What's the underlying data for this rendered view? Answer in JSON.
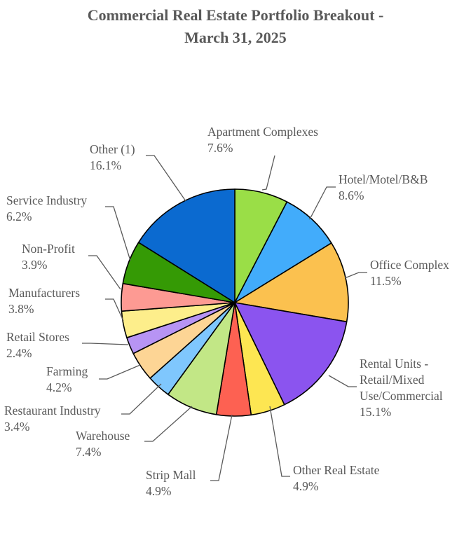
{
  "chart_data": {
    "type": "pie",
    "title": [
      "Commercial Real Estate Portfolio Breakout -",
      "March 31, 2025"
    ],
    "slices": [
      {
        "label": [
          "Apartment Complexes"
        ],
        "value_label": "7.6%",
        "value": 7.6,
        "color": "#9ade47"
      },
      {
        "label": [
          "Hotel/Motel/B&B"
        ],
        "value_label": "8.6%",
        "value": 8.6,
        "color": "#42acfb"
      },
      {
        "label": [
          "Office Complex"
        ],
        "value_label": "11.5%",
        "value": 11.5,
        "color": "#fbc14f"
      },
      {
        "label": [
          "Rental Units -",
          "Retail/Mixed",
          "Use/Commercial"
        ],
        "value_label": "15.1%",
        "value": 15.1,
        "color": "#8b54ef"
      },
      {
        "label": [
          "Other Real Estate"
        ],
        "value_label": "4.9%",
        "value": 4.9,
        "color": "#fde652"
      },
      {
        "label": [
          "Strip Mall"
        ],
        "value_label": "4.9%",
        "value": 4.9,
        "color": "#fd6152"
      },
      {
        "label": [
          "Warehouse"
        ],
        "value_label": "7.4%",
        "value": 7.4,
        "color": "#c2e786"
      },
      {
        "label": [
          "Restaurant Industry"
        ],
        "value_label": "3.4%",
        "value": 3.4,
        "color": "#7fc7fd"
      },
      {
        "label": [
          "Farming"
        ],
        "value_label": "4.2%",
        "value": 4.2,
        "color": "#fdd595"
      },
      {
        "label": [
          "Retail Stores"
        ],
        "value_label": "2.4%",
        "value": 2.4,
        "color": "#b794f4"
      },
      {
        "label": [
          "Manufacturers"
        ],
        "value_label": "3.8%",
        "value": 3.8,
        "color": "#fdee8b"
      },
      {
        "label": [
          "Non-Profit"
        ],
        "value_label": "3.9%",
        "value": 3.9,
        "color": "#fd9a93"
      },
      {
        "label": [
          "Service Industry"
        ],
        "value_label": "6.2%",
        "value": 6.2,
        "color": "#359a05"
      },
      {
        "label": [
          "Other (1)"
        ],
        "value_label": "16.1%",
        "value": 16.1,
        "color": "#0b6ad0"
      }
    ],
    "start_angle": "12 o'clock",
    "direction": "clockwise",
    "slice_border": "#000000",
    "leader_line_color": "#595959"
  }
}
